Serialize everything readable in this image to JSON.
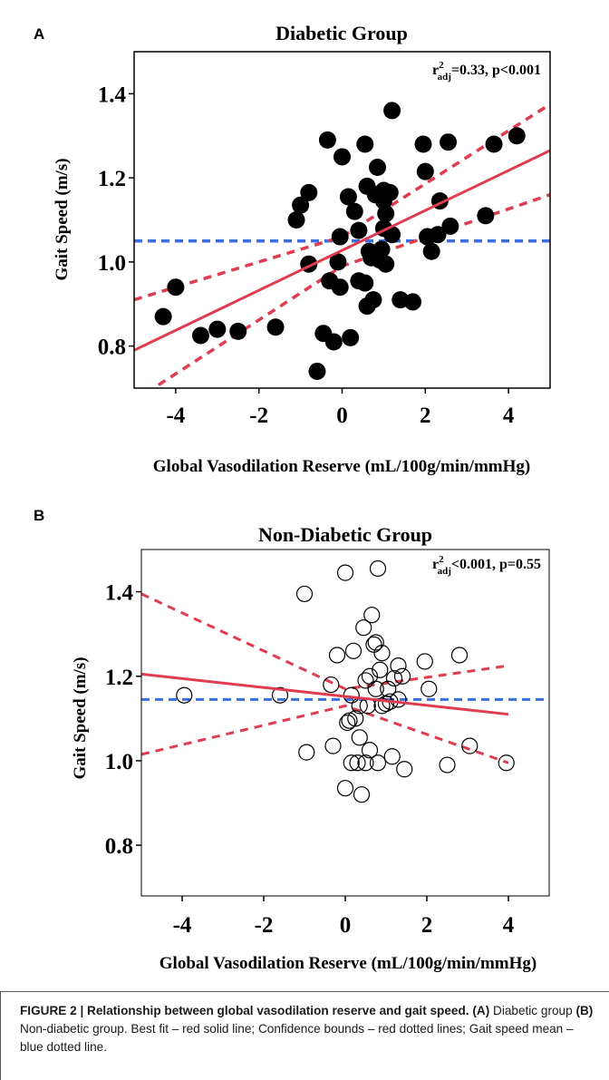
{
  "colors": {
    "fit": "#e03c4f",
    "mean": "#3a6fe0",
    "point_fill_A": "#000000",
    "point_fill_B": "none"
  },
  "chart_data": [
    {
      "panel": "A",
      "type": "scatter",
      "title": "Diabetic Group",
      "xlabel": "Global Vasodilation Reserve (mL/100g/min/mmHg)",
      "ylabel": "Gait Speed (m/s)",
      "xlim": [
        -5,
        5
      ],
      "ylim": [
        0.7,
        1.5
      ],
      "xticks": [
        "-4",
        "-2",
        "0",
        "2",
        "4"
      ],
      "yticks": [
        "0.8",
        "1.0",
        "1.2",
        "1.4"
      ],
      "annotation": {
        "r": "r",
        "sup": "2",
        "sub": "adj",
        "rest": "=0.33, p<0.001"
      },
      "marker": "filled",
      "fit": {
        "x": [
          -5,
          5
        ],
        "y": [
          0.79,
          1.265
        ]
      },
      "ci_upper": {
        "x": [
          -5,
          0,
          5
        ],
        "y": [
          0.91,
          1.06,
          1.375
        ]
      },
      "ci_lower": {
        "x": [
          -5,
          0,
          5
        ],
        "y": [
          0.67,
          0.99,
          1.16
        ]
      },
      "mean_y": 1.05,
      "points": [
        [
          -4.3,
          0.87
        ],
        [
          -4.0,
          0.94
        ],
        [
          -3.4,
          0.825
        ],
        [
          -3.0,
          0.84
        ],
        [
          -2.5,
          0.835
        ],
        [
          -1.6,
          0.845
        ],
        [
          -1.1,
          1.1
        ],
        [
          -1.0,
          1.135
        ],
        [
          -0.8,
          1.165
        ],
        [
          -0.8,
          0.995
        ],
        [
          -0.6,
          0.74
        ],
        [
          -0.45,
          0.83
        ],
        [
          -0.35,
          1.29
        ],
        [
          -0.3,
          0.955
        ],
        [
          -0.2,
          0.81
        ],
        [
          -0.1,
          1.0
        ],
        [
          -0.05,
          0.94
        ],
        [
          -0.05,
          1.06
        ],
        [
          0.0,
          1.25
        ],
        [
          0.15,
          1.155
        ],
        [
          0.2,
          0.82
        ],
        [
          0.3,
          1.12
        ],
        [
          0.4,
          1.075
        ],
        [
          0.4,
          0.955
        ],
        [
          0.55,
          1.28
        ],
        [
          0.55,
          0.95
        ],
        [
          0.6,
          1.18
        ],
        [
          0.6,
          0.895
        ],
        [
          0.65,
          1.025
        ],
        [
          0.7,
          1.01
        ],
        [
          0.75,
          0.91
        ],
        [
          0.8,
          1.16
        ],
        [
          0.85,
          1.225
        ],
        [
          0.9,
          1.005
        ],
        [
          0.95,
          1.03
        ],
        [
          1.0,
          1.17
        ],
        [
          1.0,
          1.145
        ],
        [
          1.0,
          1.08
        ],
        [
          1.05,
          0.995
        ],
        [
          1.05,
          1.115
        ],
        [
          1.15,
          1.165
        ],
        [
          1.2,
          1.065
        ],
        [
          1.2,
          1.36
        ],
        [
          1.4,
          0.91
        ],
        [
          1.7,
          0.905
        ],
        [
          1.95,
          1.28
        ],
        [
          2.0,
          1.215
        ],
        [
          2.05,
          1.06
        ],
        [
          2.15,
          1.025
        ],
        [
          2.3,
          1.065
        ],
        [
          2.35,
          1.145
        ],
        [
          2.55,
          1.285
        ],
        [
          2.6,
          1.085
        ],
        [
          3.45,
          1.11
        ],
        [
          3.65,
          1.28
        ],
        [
          4.2,
          1.3
        ]
      ]
    },
    {
      "panel": "B",
      "type": "scatter",
      "title": "Non-Diabetic Group",
      "xlabel": "Global Vasodilation Reserve (mL/100g/min/mmHg)",
      "ylabel": "Gait Speed (m/s)",
      "xlim": [
        -5,
        5
      ],
      "ylim": [
        0.68,
        1.5
      ],
      "xticks": [
        "-4",
        "-2",
        "0",
        "2",
        "4"
      ],
      "yticks": [
        "0.8",
        "1.0",
        "1.2",
        "1.4"
      ],
      "annotation": {
        "r": "r",
        "sup": "2",
        "sub": "adj",
        "rest": "<0.001, p=0.55"
      },
      "marker": "open",
      "fit": {
        "x": [
          -5,
          4
        ],
        "y": [
          1.205,
          1.11
        ]
      },
      "ci_upper": {
        "x": [
          -5,
          0,
          4
        ],
        "y": [
          1.395,
          1.17,
          1.225
        ]
      },
      "ci_lower": {
        "x": [
          -5,
          0,
          4
        ],
        "y": [
          1.015,
          1.13,
          0.995
        ]
      },
      "mean_y": 1.145,
      "points": [
        [
          -3.95,
          1.155
        ],
        [
          -1.6,
          1.155
        ],
        [
          -1.0,
          1.395
        ],
        [
          -0.95,
          1.02
        ],
        [
          -0.35,
          1.18
        ],
        [
          -0.3,
          1.035
        ],
        [
          -0.2,
          1.25
        ],
        [
          0.0,
          1.445
        ],
        [
          0.0,
          0.935
        ],
        [
          0.05,
          1.09
        ],
        [
          0.1,
          1.095
        ],
        [
          0.15,
          1.155
        ],
        [
          0.15,
          0.995
        ],
        [
          0.2,
          1.26
        ],
        [
          0.25,
          1.1
        ],
        [
          0.3,
          0.995
        ],
        [
          0.35,
          1.13
        ],
        [
          0.35,
          1.055
        ],
        [
          0.4,
          0.92
        ],
        [
          0.45,
          1.315
        ],
        [
          0.5,
          1.19
        ],
        [
          0.5,
          0.995
        ],
        [
          0.55,
          1.13
        ],
        [
          0.6,
          1.025
        ],
        [
          0.6,
          1.2
        ],
        [
          0.65,
          1.345
        ],
        [
          0.7,
          1.275
        ],
        [
          0.75,
          1.28
        ],
        [
          0.75,
          1.17
        ],
        [
          0.8,
          1.455
        ],
        [
          0.8,
          0.995
        ],
        [
          0.85,
          1.215
        ],
        [
          0.9,
          1.255
        ],
        [
          0.9,
          1.13
        ],
        [
          1.0,
          1.135
        ],
        [
          1.05,
          1.17
        ],
        [
          1.1,
          1.14
        ],
        [
          1.15,
          1.01
        ],
        [
          1.2,
          1.195
        ],
        [
          1.3,
          1.145
        ],
        [
          1.3,
          1.225
        ],
        [
          1.4,
          1.2
        ],
        [
          1.45,
          0.98
        ],
        [
          1.95,
          1.235
        ],
        [
          2.05,
          1.17
        ],
        [
          2.5,
          0.99
        ],
        [
          2.8,
          1.25
        ],
        [
          3.05,
          1.035
        ],
        [
          3.95,
          0.995
        ]
      ]
    }
  ],
  "caption": {
    "head": "FIGURE 2 | Relationship between global vasodilation reserve and gait speed.",
    "parts": [
      {
        "label": "(A)",
        "text": " Diabetic group "
      },
      {
        "label": "(B)",
        "text": " Non-diabetic group. Best fit – red solid line; Confidence bounds – red dotted lines; Gait speed mean – blue dotted line."
      }
    ]
  }
}
